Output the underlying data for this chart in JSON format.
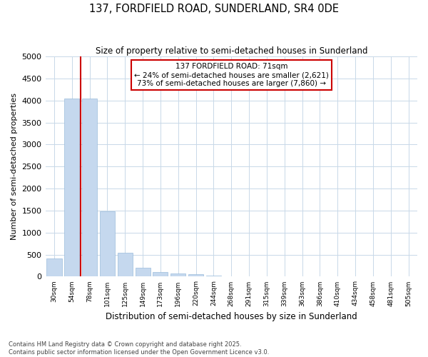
{
  "title_line1": "137, FORDFIELD ROAD, SUNDERLAND, SR4 0DE",
  "title_line2": "Size of property relative to semi-detached houses in Sunderland",
  "xlabel": "Distribution of semi-detached houses by size in Sunderland",
  "ylabel": "Number of semi-detached properties",
  "categories": [
    "30sqm",
    "54sqm",
    "78sqm",
    "101sqm",
    "125sqm",
    "149sqm",
    "173sqm",
    "196sqm",
    "220sqm",
    "244sqm",
    "268sqm",
    "291sqm",
    "315sqm",
    "339sqm",
    "363sqm",
    "386sqm",
    "410sqm",
    "434sqm",
    "458sqm",
    "481sqm",
    "505sqm"
  ],
  "values": [
    420,
    4050,
    4050,
    1480,
    550,
    200,
    100,
    75,
    50,
    30,
    0,
    0,
    0,
    0,
    0,
    0,
    0,
    0,
    0,
    0,
    0
  ],
  "bar_color": "#c5d8ee",
  "bar_edge_color": "#9bbcdb",
  "red_line_x": 1.5,
  "red_line_color": "#cc0000",
  "annotation_text": "137 FORDFIELD ROAD: 71sqm\n← 24% of semi-detached houses are smaller (2,621)\n73% of semi-detached houses are larger (7,860) →",
  "annotation_box_color": "#cc0000",
  "ylim": [
    0,
    5000
  ],
  "yticks": [
    0,
    500,
    1000,
    1500,
    2000,
    2500,
    3000,
    3500,
    4000,
    4500,
    5000
  ],
  "background_color": "#ffffff",
  "plot_background": "#ffffff",
  "grid_color": "#c8d8e8",
  "footnote": "Contains HM Land Registry data © Crown copyright and database right 2025.\nContains public sector information licensed under the Open Government Licence v3.0.",
  "figsize": [
    6.0,
    5.0
  ],
  "dpi": 100
}
